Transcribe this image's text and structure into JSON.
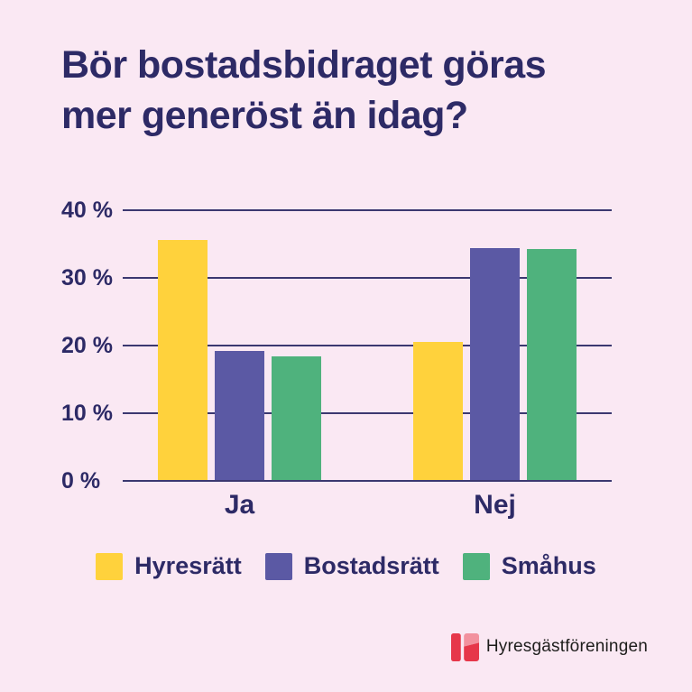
{
  "title": {
    "line1": "Bör bostadsbidraget göras",
    "line2": "mer generöst än idag?"
  },
  "chart_data": {
    "type": "bar",
    "title": "Bör bostadsbidraget göras mer generöst än idag?",
    "categories": [
      "Ja",
      "Nej"
    ],
    "series": [
      {
        "name": "Hyresrätt",
        "color": "#FFD23C",
        "values": [
          35.6,
          20.6
        ]
      },
      {
        "name": "Bostadsrätt",
        "color": "#5B59A4",
        "values": [
          19.2,
          34.4
        ]
      },
      {
        "name": "Småhus",
        "color": "#4FB27D",
        "values": [
          18.4,
          34.3
        ]
      }
    ],
    "unit": "%",
    "ylim": [
      0,
      40
    ],
    "yticks": [
      "40 %",
      "30 %",
      "20 %",
      "10 %",
      "0 %"
    ],
    "grid": true,
    "legend_position": "bottom"
  },
  "footer": {
    "brand": "Hyresgästföreningen"
  },
  "colors": {
    "background": "#FAE8F3",
    "text_navy": "#2D2A66",
    "gridline": "#3B3870",
    "logo_red": "#E6374A",
    "logo_pink": "#F2919E",
    "logo_text": "#1D1D1B"
  }
}
